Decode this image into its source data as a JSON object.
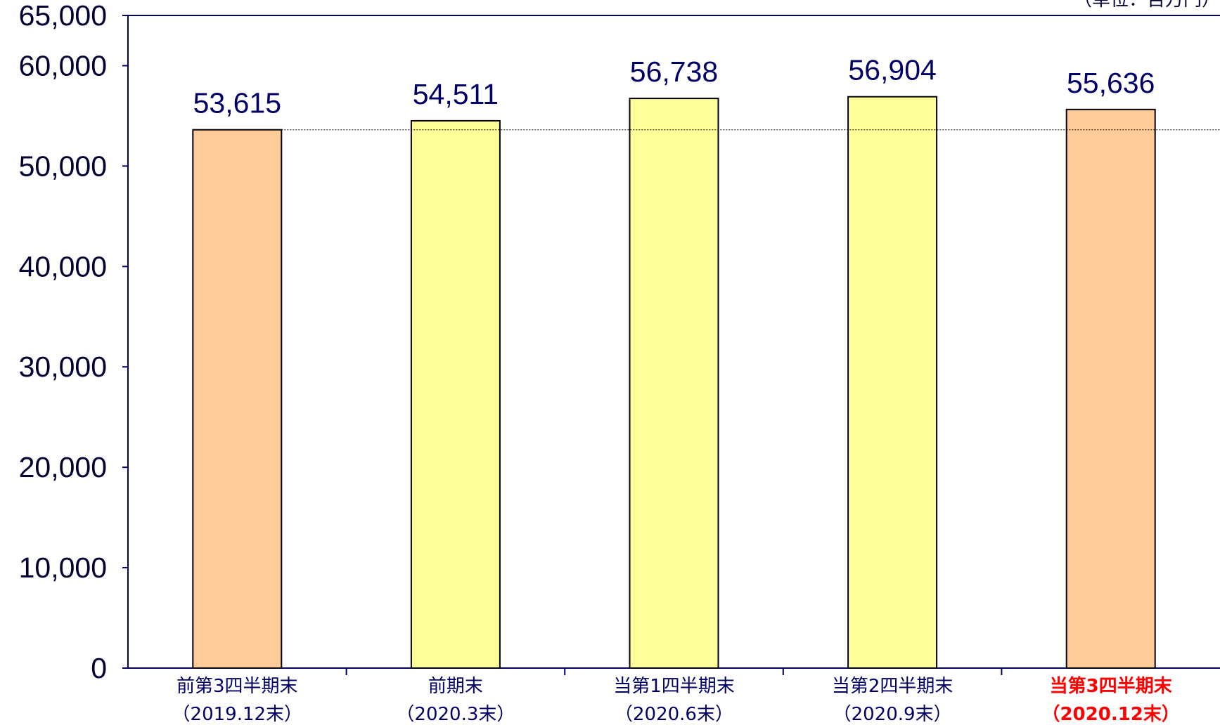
{
  "unit_label": "（単位：百万円）",
  "chart_data": {
    "type": "bar",
    "categories": [
      {
        "line1": "前第3四半期末",
        "line2": "（2019.12末）",
        "highlight": false
      },
      {
        "line1": "前期末",
        "line2": "（2020.3末）",
        "highlight": false
      },
      {
        "line1": "当第1四半期末",
        "line2": "（2020.6末）",
        "highlight": false
      },
      {
        "line1": "当第2四半期末",
        "line2": "（2020.9末）",
        "highlight": false
      },
      {
        "line1": "当第3四半期末",
        "line2": "（2020.12末）",
        "highlight": true
      }
    ],
    "values": [
      53615,
      54511,
      56738,
      56904,
      55636
    ],
    "data_labels": [
      "53,615",
      "54,511",
      "56,738",
      "56,904",
      "55,636"
    ],
    "bar_colors": [
      "#FFCC99",
      "#FFFF99",
      "#FFFF99",
      "#FFFF99",
      "#FFCC99"
    ],
    "highlight_color": "#FF0000",
    "ylim": [
      0,
      65000
    ],
    "yticks": [
      0,
      10000,
      20000,
      30000,
      40000,
      50000,
      60000,
      65000
    ],
    "ytick_labels": [
      "0",
      "10,000",
      "20,000",
      "30,000",
      "40,000",
      "50,000",
      "60,000",
      "65,000"
    ],
    "reference_line": {
      "value": 53615,
      "style": "dotted"
    },
    "grid": false
  }
}
